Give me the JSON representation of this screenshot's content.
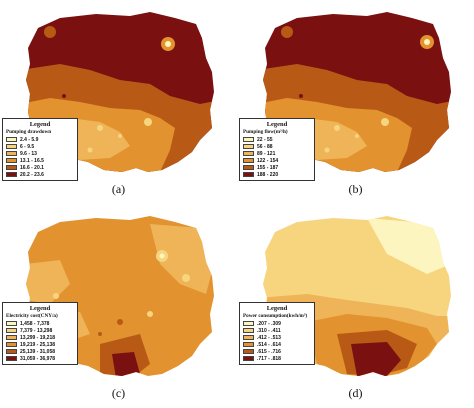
{
  "panels": [
    {
      "caption": "(a)",
      "legend_title": "Legend",
      "legend_subtitle": "Pumping drawdown",
      "classes": [
        {
          "label": "2.4 - 5.9",
          "color": "#fdf5c0"
        },
        {
          "label": "6 - 9.5",
          "color": "#f7d57e"
        },
        {
          "label": "9.6 - 13",
          "color": "#efb458"
        },
        {
          "label": "13.1 - 16.5",
          "color": "#e2922e"
        },
        {
          "label": "16.6 - 20.1",
          "color": "#b85a16"
        },
        {
          "label": "20.2 - 23.6",
          "color": "#7a1010"
        }
      ]
    },
    {
      "caption": "(b)",
      "legend_title": "Legend",
      "legend_subtitle": "Pumping flow(m³/h)",
      "classes": [
        {
          "label": "22 - 55",
          "color": "#fdf5c0"
        },
        {
          "label": "56 - 88",
          "color": "#f7d57e"
        },
        {
          "label": "89 - 121",
          "color": "#efb458"
        },
        {
          "label": "122 - 154",
          "color": "#e2922e"
        },
        {
          "label": "155 - 187",
          "color": "#b85a16"
        },
        {
          "label": "188 - 220",
          "color": "#7a1010"
        }
      ]
    },
    {
      "caption": "(c)",
      "legend_title": "Legend",
      "legend_subtitle": "Electricity cost(CNY/a)",
      "classes": [
        {
          "label": "1,458 - 7,378",
          "color": "#fdf5c0"
        },
        {
          "label": "7,379 - 13,298",
          "color": "#f7d57e"
        },
        {
          "label": "13,299 - 19,218",
          "color": "#efb458"
        },
        {
          "label": "19,219 - 25,138",
          "color": "#e2922e"
        },
        {
          "label": "25,139 - 31,058",
          "color": "#b85a16"
        },
        {
          "label": "31,059 - 36,978",
          "color": "#7a1010"
        }
      ]
    },
    {
      "caption": "(d)",
      "legend_title": "Legend",
      "legend_subtitle": "Power consumption(kwh/m³)",
      "classes": [
        {
          "label": ".207 - .309",
          "color": "#fdf5c0"
        },
        {
          "label": ".310 - .411",
          "color": "#f7d57e"
        },
        {
          "label": ".412 - .513",
          "color": "#efb458"
        },
        {
          "label": ".514 - .614",
          "color": "#e2922e"
        },
        {
          "label": ".615 - .716",
          "color": "#b85a16"
        },
        {
          "label": ".717 - .818",
          "color": "#7a1010"
        }
      ]
    }
  ]
}
